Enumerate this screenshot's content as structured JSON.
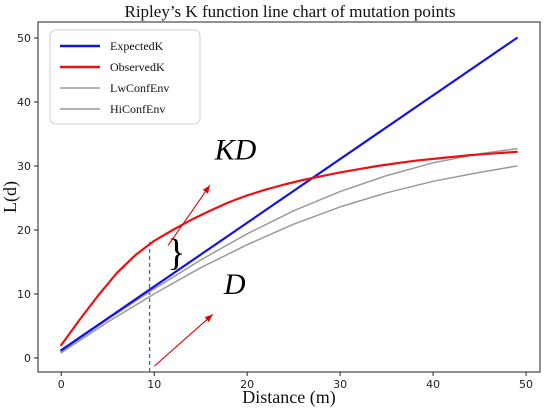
{
  "chart_data": {
    "type": "line",
    "title": "Ripley’s K function line chart of mutation points",
    "xlabel": "Distance (m)",
    "ylabel": "L(d)",
    "xlim": [
      -2.5,
      51.5
    ],
    "ylim": [
      -2.2,
      52.5
    ],
    "xticks": [
      0,
      10,
      20,
      30,
      40,
      50
    ],
    "yticks": [
      0,
      10,
      20,
      30,
      40,
      50
    ],
    "grid": false,
    "legend_position": "top-left",
    "series": [
      {
        "name": "ExpectedK",
        "color": "#1414e0",
        "x": [
          0,
          49
        ],
        "y": [
          1.2,
          50
        ]
      },
      {
        "name": "ObservedK",
        "color": "#ee1111",
        "x": [
          0,
          2,
          4,
          6,
          8,
          10,
          12,
          14,
          16,
          18,
          20,
          22,
          24,
          26,
          28,
          30,
          32,
          34,
          36,
          38,
          40,
          42,
          44,
          46,
          48,
          49
        ],
        "y": [
          2.0,
          6.0,
          9.8,
          13.3,
          16.1,
          18.3,
          20.0,
          21.6,
          23.0,
          24.3,
          25.4,
          26.3,
          27.1,
          27.8,
          28.4,
          29.0,
          29.5,
          30.0,
          30.4,
          30.8,
          31.1,
          31.4,
          31.7,
          31.9,
          32.1,
          32.2
        ]
      },
      {
        "name": "LwConfEnv",
        "color": "#9a9a9a",
        "x": [
          0,
          5,
          10,
          15,
          20,
          25,
          30,
          35,
          40,
          45,
          49
        ],
        "y": [
          0.8,
          5.6,
          10.0,
          14.1,
          17.7,
          20.9,
          23.6,
          25.8,
          27.6,
          29.0,
          30.0
        ]
      },
      {
        "name": "HiConfEnv",
        "color": "#9a9a9a",
        "x": [
          0,
          5,
          10,
          15,
          20,
          25,
          30,
          35,
          40,
          45,
          49
        ],
        "y": [
          1.0,
          6.0,
          10.8,
          15.3,
          19.4,
          23.0,
          26.0,
          28.5,
          30.5,
          31.9,
          32.7
        ]
      }
    ],
    "vertical_marker": {
      "x": 9.5,
      "color": "#1f77b4"
    },
    "annotations": [
      {
        "text": "KD",
        "x": 16.5,
        "y": 31
      },
      {
        "text": "D",
        "x": 17.5,
        "y": 10
      },
      {
        "text": "}",
        "x": 11.4,
        "y": 14.5
      }
    ],
    "arrows": [
      {
        "from_x": 11.5,
        "from_y": 17.6,
        "to_x": 16,
        "to_y": 27
      },
      {
        "from_x": 10,
        "from_y": -1.3,
        "to_x": 16.3,
        "to_y": 6.8
      }
    ]
  }
}
